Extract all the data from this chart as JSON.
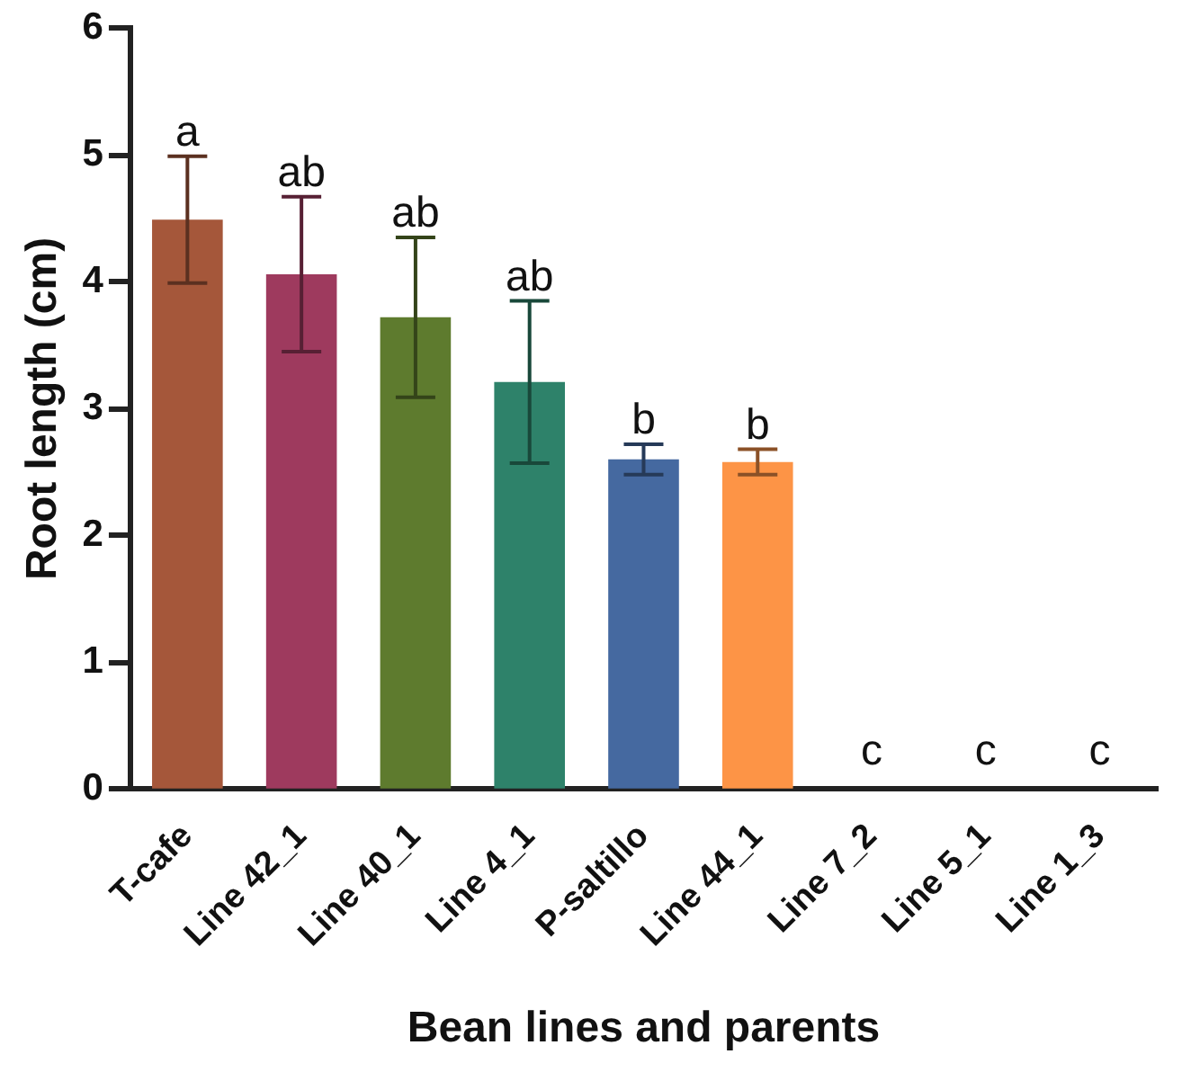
{
  "chart_data": {
    "type": "bar",
    "xlabel": "Bean lines and parents",
    "ylabel": "Root length (cm)",
    "categories": [
      "T-cafe",
      "Line 42_1",
      "Line 40_1",
      "Line 4_1",
      "P-saltillo",
      "Line 44_1",
      "Line 7_2",
      "Line 5_1",
      "Line 1_3"
    ],
    "values": [
      4.49,
      4.06,
      3.72,
      3.21,
      2.6,
      2.58,
      0,
      0,
      0
    ],
    "errors": [
      0.5,
      0.61,
      0.63,
      0.64,
      0.12,
      0.1,
      null,
      null,
      null
    ],
    "colors": [
      "#a5573a",
      "#9e3a5e",
      "#5e7b2e",
      "#2e826a",
      "#4569a0",
      "#fd9446",
      "#888888",
      "#888888",
      "#888888"
    ],
    "ylim": [
      0,
      6
    ],
    "yticks": [
      0,
      1,
      2,
      3,
      4,
      5,
      6
    ],
    "grid": false,
    "legend": false,
    "annotations": [
      "a",
      "ab",
      "ab",
      "ab",
      "b",
      "b",
      "c",
      "c",
      "c"
    ]
  }
}
